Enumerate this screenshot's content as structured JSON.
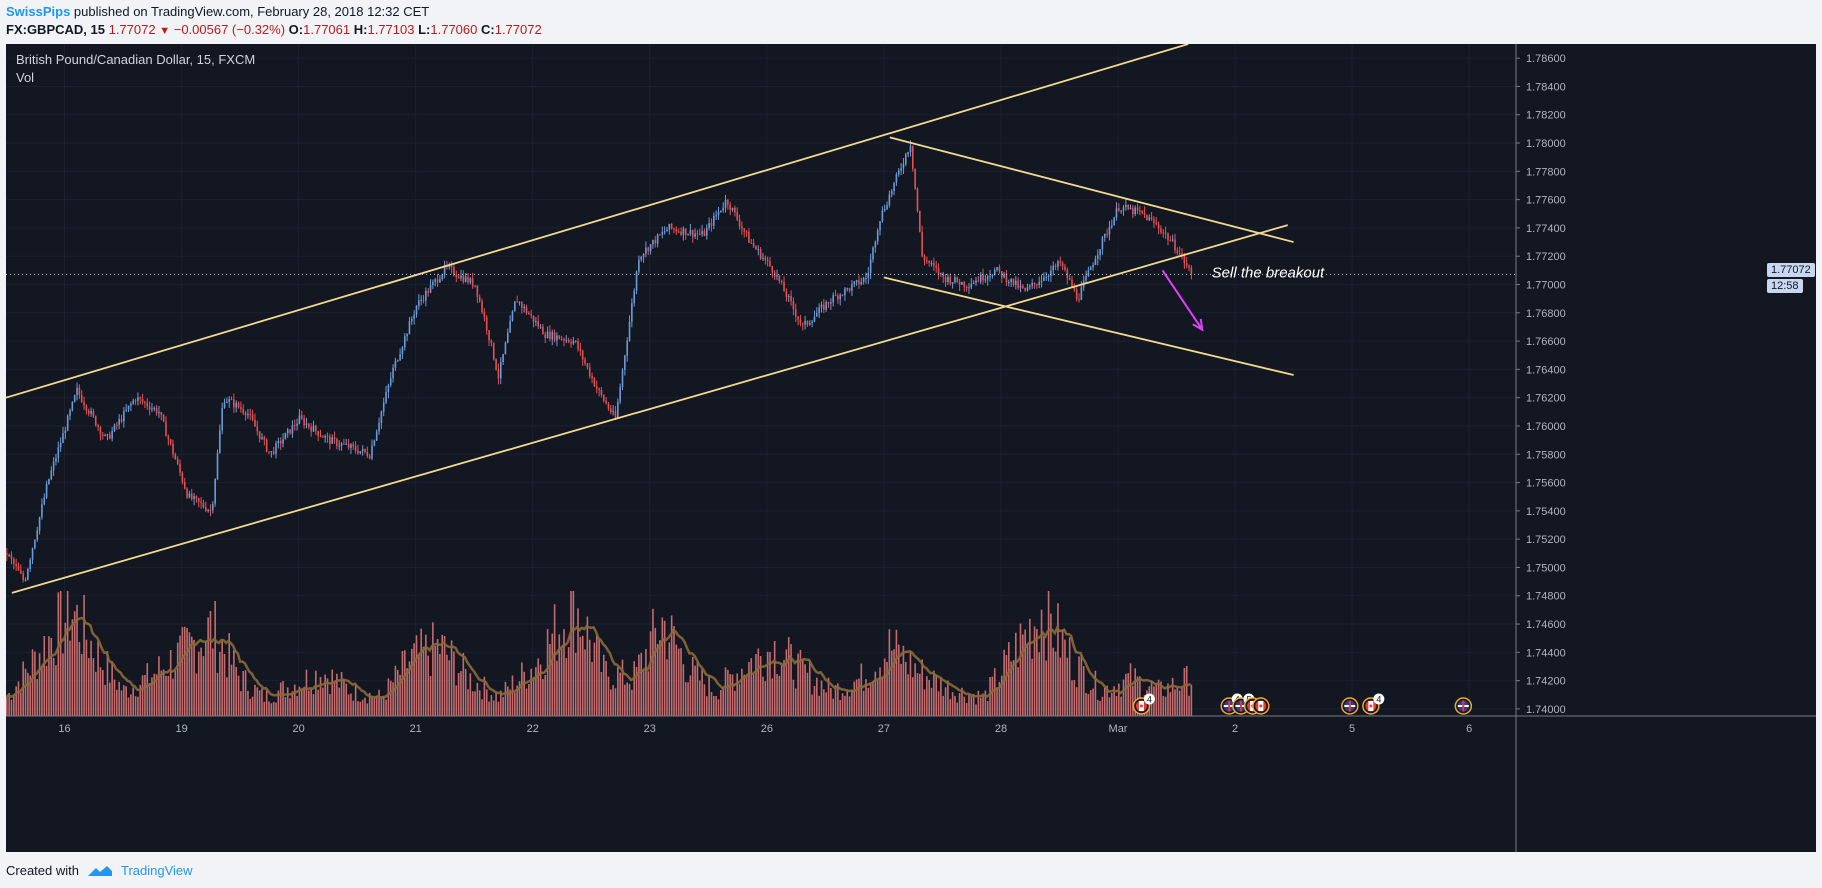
{
  "header": {
    "author": "SwissPips",
    "published": " published on TradingView.com, February 28, 2018 12:32 CET",
    "symbol": "FX:GBPCAD, 15",
    "last": "1.77072",
    "change": "−0.00567 (−0.32%)",
    "o_label": "O:",
    "o": "1.77061",
    "h_label": "H:",
    "h": "1.77103",
    "l_label": "L:",
    "l": "1.77060",
    "c_label": "C:",
    "c": "1.77072"
  },
  "chart": {
    "symbol_title": "British Pound/Canadian Dollar, 15, FXCM",
    "vol_label": "Vol",
    "annotation": "Sell the breakout",
    "price_badge": "1.77072",
    "time_badge": "12:58"
  },
  "footer": {
    "created_with": "Created with",
    "brand": "TradingView"
  },
  "colors": {
    "background": "#131722",
    "up": "#6c9bd9",
    "down": "#e55151",
    "volume": "#e37a7a",
    "trendline": "#f3d98f",
    "arrow": "#e040fb",
    "ma": "#8a6a3a"
  },
  "chart_data": {
    "type": "candlestick",
    "title": "British Pound/Canadian Dollar, 15, FXCM",
    "ylim": [
      1.7395,
      1.787
    ],
    "y_ticks": [
      1.74,
      1.742,
      1.744,
      1.746,
      1.748,
      1.75,
      1.752,
      1.754,
      1.756,
      1.758,
      1.76,
      1.762,
      1.764,
      1.766,
      1.768,
      1.77,
      1.772,
      1.774,
      1.776,
      1.778,
      1.78,
      1.782,
      1.784,
      1.786
    ],
    "y_tick_labels": [
      "1.74000",
      "1.74200",
      "1.74400",
      "1.74600",
      "1.74800",
      "1.75000",
      "1.75200",
      "1.75400",
      "1.75600",
      "1.75800",
      "1.76000",
      "1.76200",
      "1.76400",
      "1.76600",
      "1.76800",
      "1.77000",
      "1.77200",
      "1.77400",
      "1.77600",
      "1.77800",
      "1.78000",
      "1.78200",
      "1.78400",
      "1.78600"
    ],
    "x_labels": [
      "16",
      "19",
      "20",
      "21",
      "22",
      "23",
      "26",
      "27",
      "28",
      "Mar",
      "2",
      "5",
      "6"
    ],
    "x_label_slots": [
      0.5,
      1.5,
      2.5,
      3.5,
      4.5,
      5.5,
      6.5,
      7.5,
      8.5,
      9.5,
      10.5,
      11.5,
      12.5
    ],
    "slot_count": 12.9,
    "price_path": [
      [
        0.0,
        1.751
      ],
      [
        0.15,
        1.749
      ],
      [
        0.35,
        1.756
      ],
      [
        0.6,
        1.7625
      ],
      [
        0.85,
        1.759
      ],
      [
        1.1,
        1.762
      ],
      [
        1.3,
        1.761
      ],
      [
        1.55,
        1.755
      ],
      [
        1.75,
        1.754
      ],
      [
        1.85,
        1.762
      ],
      [
        2.05,
        1.761
      ],
      [
        2.25,
        1.758
      ],
      [
        2.5,
        1.7605
      ],
      [
        2.75,
        1.759
      ],
      [
        3.1,
        1.758
      ],
      [
        3.3,
        1.764
      ],
      [
        3.5,
        1.7685
      ],
      [
        3.75,
        1.7712
      ],
      [
        4.0,
        1.77
      ],
      [
        4.1,
        1.767
      ],
      [
        4.2,
        1.7635
      ],
      [
        4.35,
        1.769
      ],
      [
        4.6,
        1.7665
      ],
      [
        4.85,
        1.766
      ],
      [
        5.05,
        1.7625
      ],
      [
        5.2,
        1.7605
      ],
      [
        5.4,
        1.772
      ],
      [
        5.65,
        1.774
      ],
      [
        5.95,
        1.7735
      ],
      [
        6.15,
        1.776
      ],
      [
        6.35,
        1.773
      ],
      [
        6.55,
        1.771
      ],
      [
        6.8,
        1.767
      ],
      [
        7.05,
        1.769
      ],
      [
        7.35,
        1.7705
      ],
      [
        7.45,
        1.7745
      ],
      [
        7.6,
        1.7775
      ],
      [
        7.72,
        1.78
      ],
      [
        7.82,
        1.772
      ],
      [
        8.0,
        1.7705
      ],
      [
        8.2,
        1.77
      ],
      [
        8.45,
        1.771
      ],
      [
        8.7,
        1.7695
      ],
      [
        8.85,
        1.7705
      ],
      [
        9.0,
        1.7715
      ],
      [
        9.15,
        1.769
      ],
      [
        9.3,
        1.772
      ],
      [
        9.5,
        1.7755
      ],
      [
        9.7,
        1.775
      ],
      [
        9.85,
        1.774
      ],
      [
        10.0,
        1.7725
      ],
      [
        10.12,
        1.77072
      ]
    ],
    "volume_profile": [
      [
        0,
        0.15
      ],
      [
        0.2,
        0.4
      ],
      [
        0.55,
        0.85
      ],
      [
        0.8,
        0.45
      ],
      [
        1.0,
        0.2
      ],
      [
        1.2,
        0.3
      ],
      [
        1.5,
        0.5
      ],
      [
        1.75,
        0.7
      ],
      [
        2.0,
        0.3
      ],
      [
        2.2,
        0.15
      ],
      [
        2.45,
        0.25
      ],
      [
        2.7,
        0.35
      ],
      [
        2.95,
        0.2
      ],
      [
        3.2,
        0.15
      ],
      [
        3.45,
        0.45
      ],
      [
        3.7,
        0.55
      ],
      [
        3.95,
        0.3
      ],
      [
        4.2,
        0.15
      ],
      [
        4.5,
        0.4
      ],
      [
        4.85,
        0.9
      ],
      [
        5.1,
        0.35
      ],
      [
        5.35,
        0.3
      ],
      [
        5.6,
        0.75
      ],
      [
        5.85,
        0.35
      ],
      [
        6.05,
        0.2
      ],
      [
        6.3,
        0.4
      ],
      [
        6.55,
        0.55
      ],
      [
        6.8,
        0.35
      ],
      [
        7.05,
        0.2
      ],
      [
        7.3,
        0.3
      ],
      [
        7.55,
        0.55
      ],
      [
        7.8,
        0.35
      ],
      [
        8.1,
        0.2
      ],
      [
        8.35,
        0.15
      ],
      [
        8.6,
        0.5
      ],
      [
        8.85,
        0.85
      ],
      [
        9.1,
        0.45
      ],
      [
        9.35,
        0.2
      ],
      [
        9.6,
        0.3
      ],
      [
        9.85,
        0.2
      ],
      [
        10.12,
        0.3
      ]
    ],
    "trendlines": [
      {
        "from": [
          0.0,
          1.762
        ],
        "to": [
          10.1,
          1.787
        ]
      },
      {
        "from": [
          0.05,
          1.7482
        ],
        "to": [
          10.95,
          1.7742
        ]
      },
      {
        "from": [
          7.55,
          1.7804
        ],
        "to": [
          11.0,
          1.773
        ]
      },
      {
        "from": [
          7.5,
          1.7705
        ],
        "to": [
          11.0,
          1.7636
        ]
      }
    ],
    "arrow": {
      "from": [
        9.88,
        1.771
      ],
      "to": [
        10.22,
        1.7668
      ]
    },
    "current_price": 1.77072,
    "event_markers": [
      {
        "slot": 9.7,
        "badge": "4",
        "flag": "ca"
      },
      {
        "slot": 10.45,
        "badge": "4",
        "flag": "gb"
      },
      {
        "slot": 10.55,
        "badge": "5",
        "flag": "gb"
      },
      {
        "slot": 10.65,
        "badge": "",
        "flag": "ca"
      },
      {
        "slot": 10.72,
        "badge": "",
        "flag": "ca"
      },
      {
        "slot": 11.48,
        "badge": "",
        "flag": "gb"
      },
      {
        "slot": 11.66,
        "badge": "4",
        "flag": "ca"
      },
      {
        "slot": 12.45,
        "badge": "",
        "flag": "gb"
      }
    ]
  }
}
